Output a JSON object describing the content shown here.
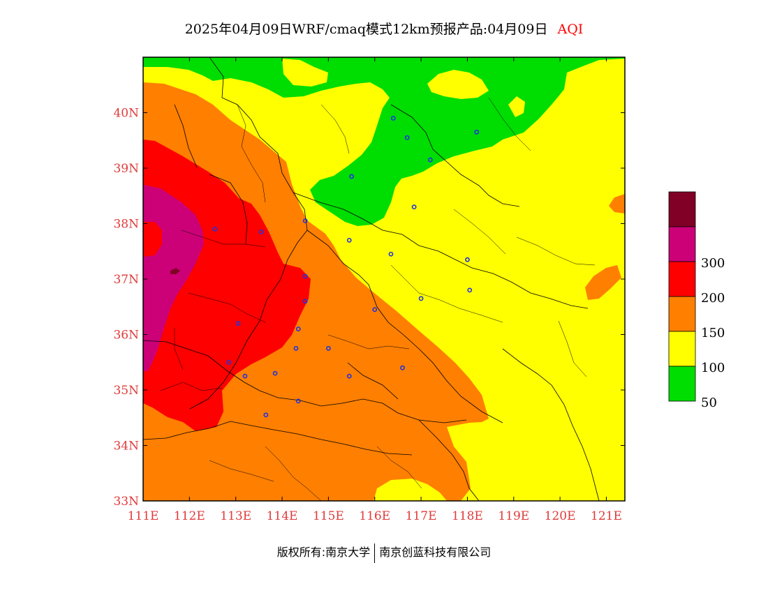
{
  "title": {
    "text": "2025年04月09日WRF/cmaq模式12km预报产品:04月09日",
    "variable": "AQI"
  },
  "map": {
    "lon_range": [
      111,
      121.4
    ],
    "lat_range": [
      33,
      41
    ],
    "lon_ticks": [
      "111E",
      "112E",
      "113E",
      "114E",
      "115E",
      "116E",
      "117E",
      "118E",
      "119E",
      "120E",
      "121E"
    ],
    "lat_ticks": [
      "33N",
      "34N",
      "35N",
      "36N",
      "37N",
      "38N",
      "39N",
      "40N"
    ],
    "tick_color": "#e03a3a",
    "stations": [
      [
        116.4,
        39.9
      ],
      [
        116.7,
        39.55
      ],
      [
        117.2,
        39.15
      ],
      [
        118.2,
        39.65
      ],
      [
        115.5,
        38.85
      ],
      [
        116.85,
        38.3
      ],
      [
        114.5,
        38.05
      ],
      [
        113.55,
        37.85
      ],
      [
        112.55,
        37.9
      ],
      [
        115.45,
        37.7
      ],
      [
        116.35,
        37.45
      ],
      [
        114.5,
        37.05
      ],
      [
        114.5,
        36.6
      ],
      [
        114.35,
        36.1
      ],
      [
        113.05,
        36.2
      ],
      [
        114.3,
        35.75
      ],
      [
        115.0,
        35.75
      ],
      [
        116.0,
        36.45
      ],
      [
        113.85,
        35.3
      ],
      [
        112.85,
        35.5
      ],
      [
        113.2,
        35.25
      ],
      [
        115.45,
        35.25
      ],
      [
        116.6,
        35.4
      ],
      [
        117.0,
        36.65
      ],
      [
        118.05,
        36.8
      ],
      [
        118.0,
        37.35
      ],
      [
        114.35,
        34.8
      ],
      [
        113.65,
        34.55
      ]
    ]
  },
  "legend": {
    "levels": [
      {
        "label": "",
        "color": "#800026"
      },
      {
        "label": "300",
        "color": "#cc0077"
      },
      {
        "label": "200",
        "color": "#ff0000"
      },
      {
        "label": "150",
        "color": "#ff7f00"
      },
      {
        "label": "100",
        "color": "#ffff00"
      },
      {
        "label": "50",
        "color": "#00dd00"
      }
    ]
  },
  "colors": {
    "good": "#00dd00",
    "moderate": "#ffff00",
    "usg": "#ff7f00",
    "unhealthy": "#ff0000",
    "very_unhealthy": "#cc0077",
    "hazardous": "#800026",
    "station": "#2233dd",
    "border": "#000000"
  },
  "footer": {
    "left": "版权所有:南京大学",
    "right": "南京创蓝科技有限公司"
  }
}
